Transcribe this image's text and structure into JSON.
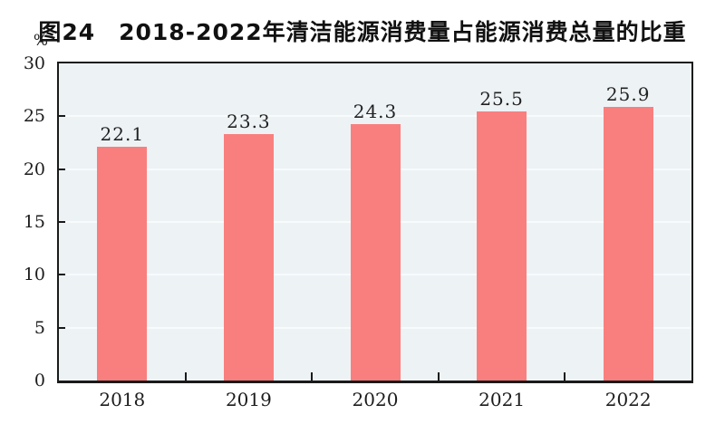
{
  "chart_data": {
    "type": "bar",
    "title": "图24　2018-2022年清洁能源消费量占能源消费总量的比重",
    "categories": [
      "2018",
      "2019",
      "2020",
      "2021",
      "2022"
    ],
    "values": [
      22.1,
      23.3,
      24.3,
      25.5,
      25.9
    ],
    "value_labels": [
      "22.1",
      "23.3",
      "24.3",
      "25.5",
      "25.9"
    ],
    "xlabel": "",
    "ylabel": "%",
    "ylim": [
      0,
      30
    ],
    "yticks": [
      0,
      5,
      10,
      15,
      20,
      25,
      30
    ],
    "grid": true,
    "legend": false,
    "colors": {
      "bar": "#f97f7e",
      "plot_background": "#edf2f5",
      "gridline": "#f8fbfc",
      "axis": "#1a1a1a",
      "text": "#1c1c1c",
      "title_text": "#111111"
    }
  }
}
